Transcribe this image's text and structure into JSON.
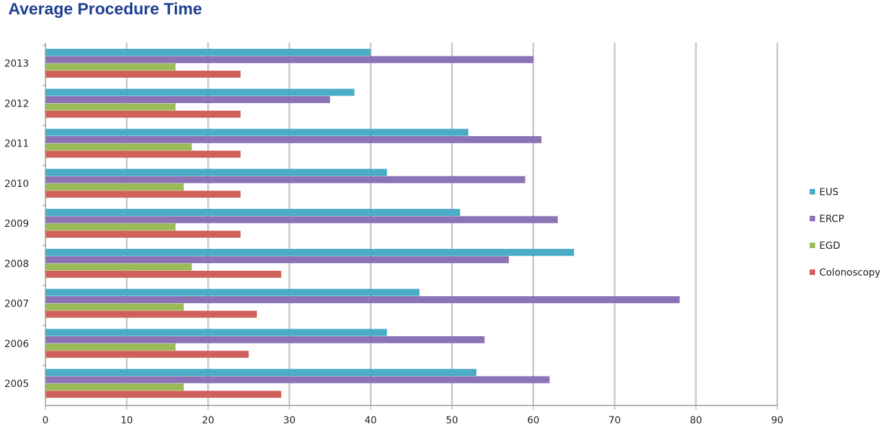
{
  "chart_data": {
    "type": "bar",
    "orientation": "horizontal",
    "title": "Average Procedure Time",
    "xlabel": "",
    "ylabel": "",
    "xlim": [
      0,
      90
    ],
    "x_ticks": [
      0,
      10,
      20,
      30,
      40,
      50,
      60,
      70,
      80,
      90
    ],
    "grid": "vertical",
    "legend_position": "right",
    "categories": [
      "2005",
      "2006",
      "2007",
      "2008",
      "2009",
      "2010",
      "2011",
      "2012",
      "2013"
    ],
    "series": [
      {
        "name": "EUS",
        "color": "#4bacc6",
        "values": [
          53,
          42,
          46,
          65,
          51,
          42,
          52,
          38,
          40
        ]
      },
      {
        "name": "ERCP",
        "color": "#8b73b6",
        "values": [
          62,
          54,
          78,
          57,
          63,
          59,
          61,
          35,
          60
        ]
      },
      {
        "name": "EGD",
        "color": "#9bbb59",
        "values": [
          17,
          16,
          17,
          18,
          16,
          17,
          18,
          16,
          16
        ]
      },
      {
        "name": "Colonoscopy",
        "color": "#d0605c",
        "values": [
          29,
          25,
          26,
          29,
          24,
          24,
          24,
          24,
          24
        ]
      }
    ]
  }
}
